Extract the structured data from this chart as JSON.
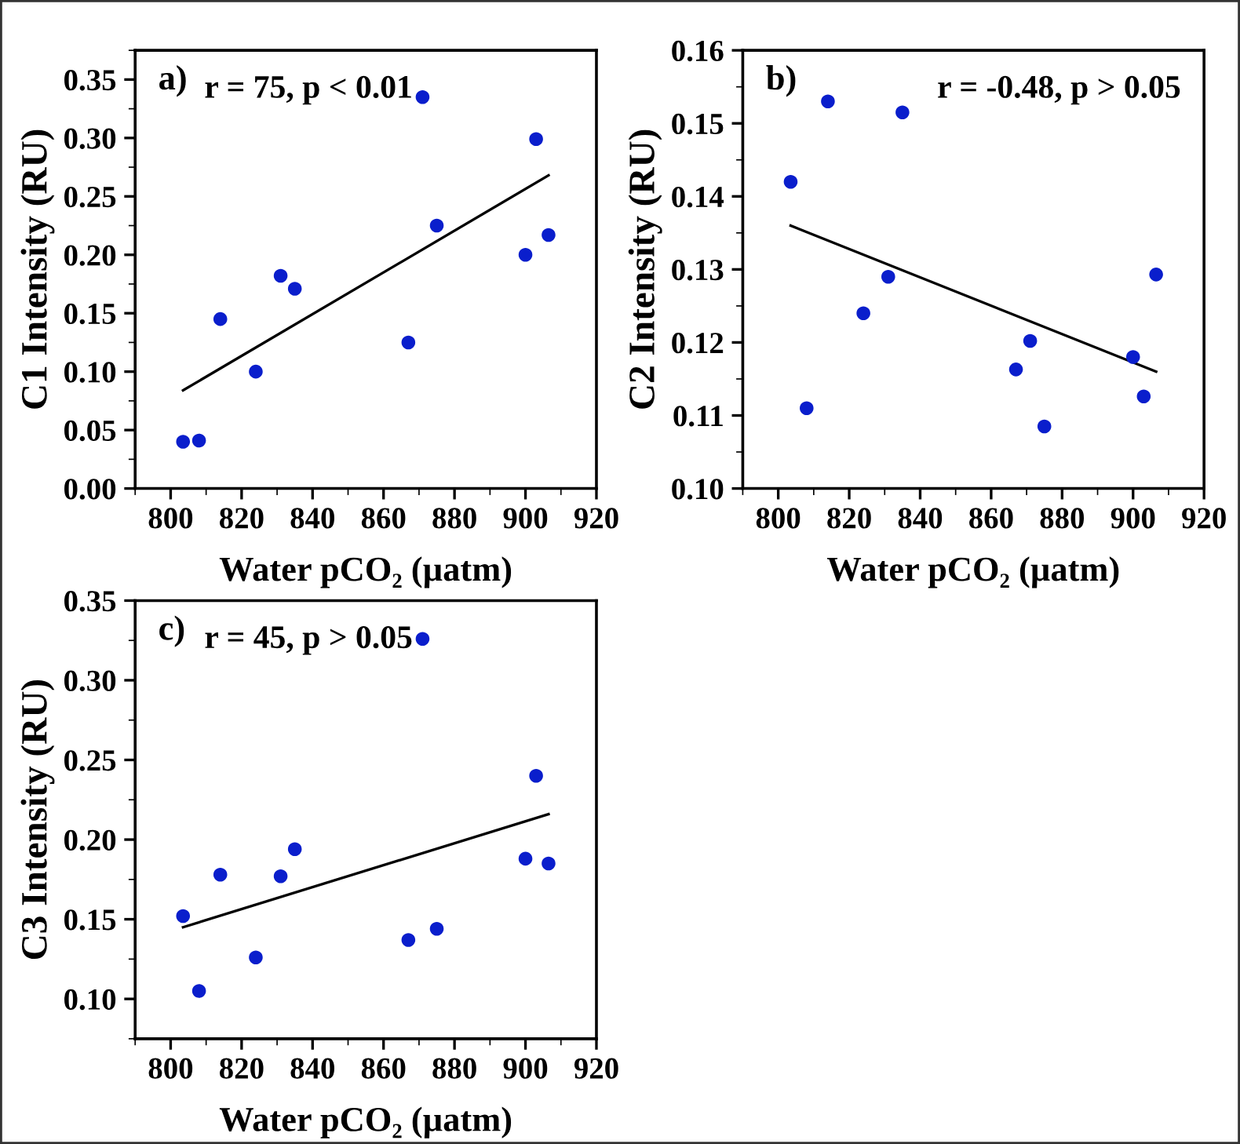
{
  "chart_data": [
    {
      "type": "scatter",
      "xlabel": "Water pCO₂ (µatm)",
      "ylabel": "C1 Intensity (RU)",
      "annotations": [
        "a)",
        "r = 75, p < 0.01"
      ],
      "xlim": [
        790,
        920
      ],
      "xticks": [
        800,
        820,
        840,
        860,
        880,
        900,
        920
      ],
      "ylim": [
        0,
        0.375
      ],
      "yticks": [
        {
          "value": 0,
          "label": "0.00"
        },
        {
          "value": 0.05,
          "label": "0.05"
        },
        {
          "value": 0.1,
          "label": "0.10"
        },
        {
          "value": 0.15,
          "label": "0.15"
        },
        {
          "value": 0.2,
          "label": "0.20"
        },
        {
          "value": 0.25,
          "label": "0.25"
        },
        {
          "value": 0.3,
          "label": "0.30"
        },
        {
          "value": 0.35,
          "label": "0.35"
        }
      ],
      "grid": false,
      "legend": false,
      "series": [
        {
          "type": "scatter",
          "marker": "circle",
          "color": "#0a1ecc",
          "x": [
            803.5,
            808,
            814,
            824,
            831,
            835,
            867,
            871,
            875,
            900,
            903,
            906.5
          ],
          "values": [
            0.04,
            0.041,
            0.145,
            0.1,
            0.182,
            0.171,
            0.125,
            0.335,
            0.225,
            0.2,
            0.299,
            0.217
          ]
        },
        {
          "type": "line",
          "marker": "none",
          "color": "#000000",
          "x": [
            803.5,
            906.5
          ],
          "values": [
            0.084,
            0.268
          ]
        }
      ]
    },
    {
      "type": "scatter",
      "xlabel": "Water pCO₂ (µatm)",
      "ylabel": "C2 Intensity (RU)",
      "annotations": [
        "b)",
        "r = -0.48, p > 0.05"
      ],
      "xlim": [
        790,
        920
      ],
      "xticks": [
        800,
        820,
        840,
        860,
        880,
        900,
        920
      ],
      "ylim": [
        0.1,
        0.16
      ],
      "yticks": [
        {
          "value": 0.1,
          "label": "0.10"
        },
        0.11,
        0.12,
        0.13,
        0.14,
        0.15,
        0.16
      ],
      "grid": false,
      "legend": false,
      "series": [
        {
          "type": "scatter",
          "marker": "circle",
          "color": "#0a1ecc",
          "x": [
            803.5,
            808,
            814,
            824,
            831,
            835,
            867,
            871,
            875,
            900,
            903,
            906.5
          ],
          "values": [
            0.142,
            0.111,
            0.153,
            0.124,
            0.129,
            0.1515,
            0.1163,
            0.1202,
            0.1085,
            0.118,
            0.1126,
            0.1293
          ]
        },
        {
          "type": "line",
          "marker": "none",
          "color": "#000000",
          "x": [
            803.5,
            906.5
          ],
          "values": [
            0.136,
            0.116
          ]
        }
      ]
    },
    {
      "type": "scatter",
      "xlabel": "Water pCO₂ (µatm)",
      "ylabel": "C3 Intensity (RU)",
      "annotations": [
        "c)",
        "r = 45, p > 0.05"
      ],
      "xlim": [
        790,
        920
      ],
      "xticks": [
        800,
        820,
        840,
        860,
        880,
        900,
        920
      ],
      "ylim": [
        0.075,
        0.35
      ],
      "yticks": [
        {
          "value": 0.1,
          "label": "0.10"
        },
        0.15,
        {
          "value": 0.2,
          "label": "0.20"
        },
        0.25,
        {
          "value": 0.3,
          "label": "0.30"
        },
        0.35
      ],
      "grid": false,
      "legend": false,
      "series": [
        {
          "type": "scatter",
          "marker": "circle",
          "color": "#0a1ecc",
          "x": [
            803.5,
            808,
            814,
            824,
            831,
            835,
            867,
            871,
            875,
            900,
            903,
            906.5
          ],
          "values": [
            0.152,
            0.105,
            0.178,
            0.126,
            0.177,
            0.194,
            0.137,
            0.326,
            0.144,
            0.188,
            0.24,
            0.185
          ]
        },
        {
          "type": "line",
          "marker": "none",
          "color": "#000000",
          "x": [
            803.5,
            906.5
          ],
          "values": [
            0.145,
            0.216
          ]
        }
      ]
    }
  ]
}
